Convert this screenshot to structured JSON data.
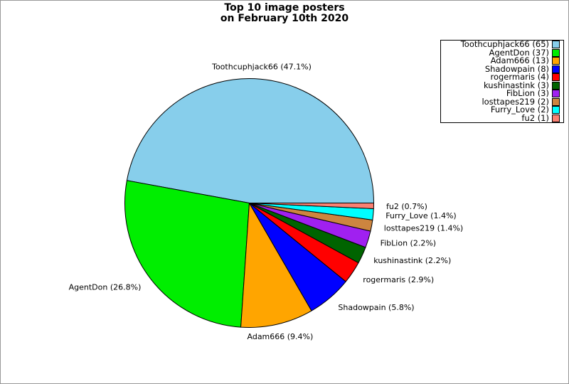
{
  "figure": {
    "title": "Top 10 image posters\non February 10th 2020"
  },
  "chart_data": {
    "type": "pie",
    "title": "Top 10 image posters on February 10th 2020",
    "total": 138,
    "start_angle_deg": 0,
    "direction": "counterclockwise",
    "labeldistance": 1.1,
    "legend_position": "upper right",
    "edge_color": "#000000",
    "slices": [
      {
        "label": "Toothcuphjack66",
        "count": 65,
        "percent_label": "47.1%",
        "pie_label": "Toothcuphjack66 (47.1%)",
        "legend_label": "Toothcuphjack66 (65)",
        "color": "#87CEEB"
      },
      {
        "label": "AgentDon",
        "count": 37,
        "percent_label": "26.8%",
        "pie_label": "AgentDon (26.8%)",
        "legend_label": "AgentDon (37)",
        "color": "#00EE00"
      },
      {
        "label": "Adam666",
        "count": 13,
        "percent_label": "9.4%",
        "pie_label": "Adam666 (9.4%)",
        "legend_label": "Adam666 (13)",
        "color": "#FFA500"
      },
      {
        "label": "Shadowpain",
        "count": 8,
        "percent_label": "5.8%",
        "pie_label": "Shadowpain (5.8%)",
        "legend_label": "Shadowpain (8)",
        "color": "#0000FF"
      },
      {
        "label": "rogermaris",
        "count": 4,
        "percent_label": "2.9%",
        "pie_label": "rogermaris (2.9%)",
        "legend_label": "rogermaris (4)",
        "color": "#FF0000"
      },
      {
        "label": "kushinastink",
        "count": 3,
        "percent_label": "2.2%",
        "pie_label": "kushinastink (2.2%)",
        "legend_label": "kushinastink (3)",
        "color": "#006400"
      },
      {
        "label": "FibLion",
        "count": 3,
        "percent_label": "2.2%",
        "pie_label": "FibLion (2.2%)",
        "legend_label": "FibLion (3)",
        "color": "#A020F0"
      },
      {
        "label": "losttapes219",
        "count": 2,
        "percent_label": "1.4%",
        "pie_label": "losttapes219 (1.4%)",
        "legend_label": "losttapes219 (2)",
        "color": "#CD853F"
      },
      {
        "label": "Furry_Love",
        "count": 2,
        "percent_label": "1.4%",
        "pie_label": "Furry_Love (1.4%)",
        "legend_label": "Furry_Love (2)",
        "color": "#00FFFF"
      },
      {
        "label": "fu2",
        "count": 1,
        "percent_label": "0.7%",
        "pie_label": "fu2 (0.7%)",
        "legend_label": "fu2 (1)",
        "color": "#FA8072"
      }
    ]
  }
}
